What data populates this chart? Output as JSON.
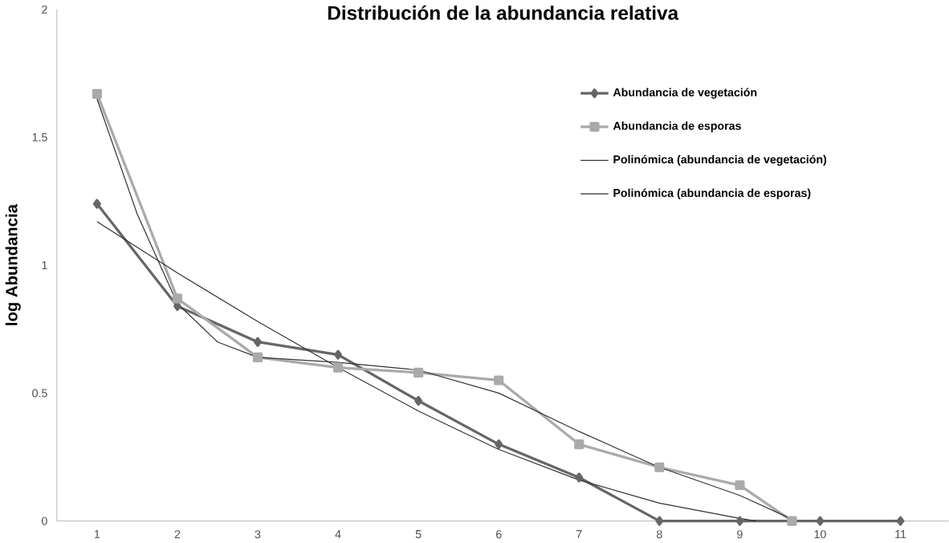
{
  "chart_data": {
    "type": "line",
    "title": "Distribución de la abundancia relativa",
    "ylabel": "log Abundancia",
    "xlim": [
      0.5,
      11.6
    ],
    "xticks": [
      1,
      2,
      3,
      4,
      5,
      6,
      7,
      8,
      9,
      10,
      11
    ],
    "ylim": [
      0,
      2
    ],
    "yticks": [
      0,
      0.5,
      1,
      1.5,
      2
    ],
    "grid": false,
    "legend": "top right",
    "line_style": "solid",
    "series": [
      {
        "name": "Abundancia de vegetación",
        "color": "#666666",
        "marker": "diamond",
        "x": [
          1,
          2,
          3,
          4,
          5,
          6,
          7,
          8,
          9,
          10,
          11
        ],
        "values": [
          1.24,
          0.84,
          0.7,
          0.65,
          0.47,
          0.3,
          0.17,
          0,
          0,
          0,
          0
        ]
      },
      {
        "name": "Abundancia de esporas",
        "color": "#aaaaaa",
        "marker": "square",
        "x": [
          1,
          2,
          3,
          4,
          5,
          6,
          7,
          8,
          9,
          9.65
        ],
        "values": [
          1.67,
          0.87,
          0.64,
          0.6,
          0.58,
          0.55,
          0.3,
          0.21,
          0.14,
          0
        ]
      },
      {
        "name": "Polinómica (abundancia de vegetación)",
        "color": "#333333",
        "marker": "none",
        "x": [
          1,
          2,
          3,
          4,
          5,
          6,
          7,
          8,
          9,
          9.2
        ],
        "values": [
          1.17,
          0.97,
          0.78,
          0.6,
          0.43,
          0.28,
          0.16,
          0.07,
          0.01,
          0
        ]
      },
      {
        "name": "Polinómica (abundancia de esporas)",
        "color": "#333333",
        "marker": "none",
        "x": [
          1,
          1.5,
          2,
          2.5,
          3,
          4,
          5,
          6,
          7,
          8,
          9,
          9.7
        ],
        "values": [
          1.65,
          1.2,
          0.85,
          0.7,
          0.64,
          0.62,
          0.59,
          0.5,
          0.35,
          0.21,
          0.1,
          0
        ]
      }
    ]
  }
}
